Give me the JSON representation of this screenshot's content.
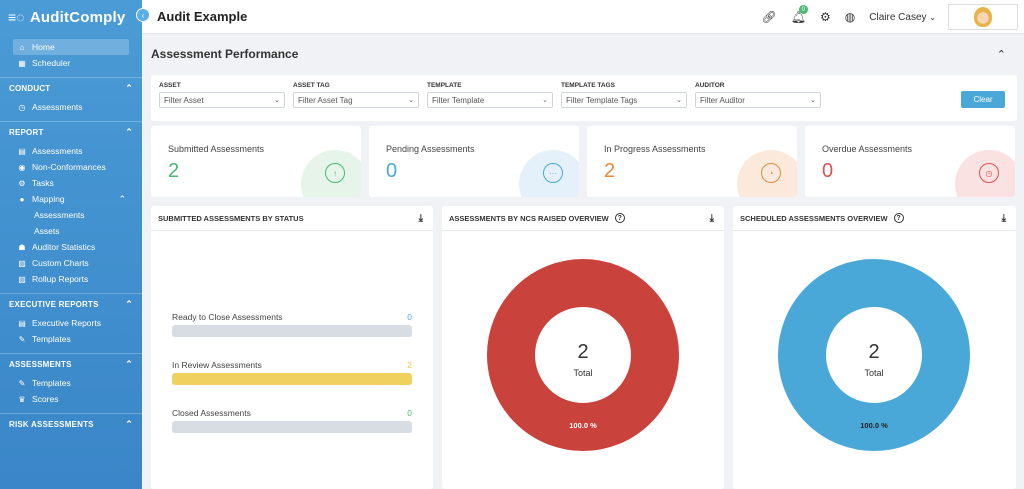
{
  "brand": {
    "name": "AuditComply"
  },
  "page_title": "Audit Example",
  "sidebar": {
    "top_items": [
      {
        "label": "Home",
        "icon": "home-icon",
        "active": true
      },
      {
        "label": "Scheduler",
        "icon": "calendar-icon",
        "active": false
      }
    ],
    "sections": [
      {
        "title": "CONDUCT",
        "items": [
          {
            "label": "Assessments",
            "icon": "clock-icon"
          }
        ]
      },
      {
        "title": "REPORT",
        "items": [
          {
            "label": "Assessments",
            "icon": "table-icon"
          },
          {
            "label": "Non-Conformances",
            "icon": "eye-icon"
          },
          {
            "label": "Tasks",
            "icon": "gear-icon"
          },
          {
            "label": "Mapping",
            "icon": "pin-icon"
          },
          {
            "label": "Assessments",
            "icon": "",
            "sub": true
          },
          {
            "label": "Assets",
            "icon": "",
            "sub": true
          },
          {
            "label": "Auditor Statistics",
            "icon": "users-icon"
          },
          {
            "label": "Custom Charts",
            "icon": "chart-icon"
          },
          {
            "label": "Rollup Reports",
            "icon": "chart-icon"
          }
        ]
      },
      {
        "title": "EXECUTIVE REPORTS",
        "items": [
          {
            "label": "Executive Reports",
            "icon": "table-icon"
          },
          {
            "label": "Templates",
            "icon": "edit-icon"
          }
        ]
      },
      {
        "title": "ASSESSMENTS",
        "items": [
          {
            "label": "Templates",
            "icon": "edit-icon"
          },
          {
            "label": "Scores",
            "icon": "trophy-icon"
          }
        ]
      },
      {
        "title": "RISK ASSESSMENTS",
        "items": []
      }
    ]
  },
  "topbar": {
    "user_name": "Claire Casey",
    "notification_count": "0"
  },
  "performance": {
    "title": "Assessment Performance"
  },
  "filters": [
    {
      "label": "ASSET",
      "placeholder": "Filter Asset"
    },
    {
      "label": "ASSET TAG",
      "placeholder": "Filter Asset Tag"
    },
    {
      "label": "TEMPLATE",
      "placeholder": "Filter Template"
    },
    {
      "label": "TEMPLATE TAGS",
      "placeholder": "Filter Template Tags"
    },
    {
      "label": "AUDITOR",
      "placeholder": "Filter Auditor"
    }
  ],
  "clear_label": "Clear",
  "cards": [
    {
      "title": "Submitted Assessments",
      "value": "2",
      "color": "#4bb86f",
      "bg": "#e6f4ea",
      "glyph": "↑"
    },
    {
      "title": "Pending Assessments",
      "value": "0",
      "color": "#4aa8d8",
      "bg": "#e4f1fa",
      "glyph": "···"
    },
    {
      "title": "In Progress Assessments",
      "value": "2",
      "color": "#e08a3c",
      "bg": "#fbeadb",
      "glyph": "◔"
    },
    {
      "title": "Overdue Assessments",
      "value": "0",
      "color": "#d9534f",
      "bg": "#fbe2e2",
      "glyph": "◷"
    }
  ],
  "panels": {
    "status": {
      "title": "SUBMITTED ASSESSMENTS BY STATUS",
      "rows": [
        {
          "label": "Ready to Close Assessments",
          "value": "0",
          "color": "#4aa8d8",
          "fill": 0
        },
        {
          "label": "In Review Assessments",
          "value": "2",
          "color": "#e8c547",
          "fill": 1
        },
        {
          "label": "Closed Assessments",
          "value": "0",
          "color": "#4bb86f",
          "fill": 0
        }
      ]
    },
    "ncs": {
      "title": "ASSESSMENTS BY NCS RAISED OVERVIEW",
      "total": "2",
      "total_label": "Total",
      "percent": "100.0 %",
      "color": "#c9423b"
    },
    "scheduled": {
      "title": "SCHEDULED ASSESSMENTS OVERVIEW",
      "total": "2",
      "total_label": "Total",
      "percent": "100.0 %",
      "color": "#4aa8d8"
    }
  }
}
